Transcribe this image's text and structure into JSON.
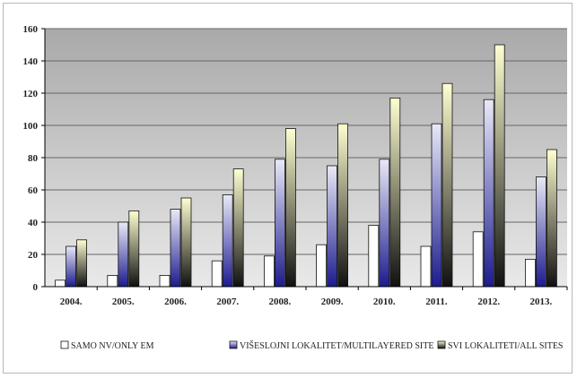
{
  "chart_data": {
    "type": "bar",
    "title": "",
    "xlabel": "",
    "ylabel": "",
    "ylim": [
      0,
      160
    ],
    "yticks": [
      0,
      20,
      40,
      60,
      80,
      100,
      120,
      140,
      160
    ],
    "grid": true,
    "legend_position": "bottom",
    "categories": [
      "2004.",
      "2005.",
      "2006.",
      "2007.",
      "2008.",
      "2009.",
      "2010.",
      "2011.",
      "2012.",
      "2013."
    ],
    "series": [
      {
        "name": "SAMO NV/ONLY EM",
        "values": [
          4,
          7,
          7,
          16,
          19,
          26,
          38,
          25,
          34,
          17
        ]
      },
      {
        "name": "VIŠESLOJNI LOKALITET/MULTILAYERED SITE",
        "values": [
          25,
          40,
          48,
          57,
          79,
          75,
          79,
          101,
          116,
          68
        ]
      },
      {
        "name": "SVI LOKALITETI/ALL SITES",
        "values": [
          29,
          47,
          55,
          73,
          98,
          101,
          117,
          126,
          150,
          85
        ]
      }
    ],
    "colors": {
      "plot_top": "#a9a9a9",
      "plot_bottom": "#e9e9e9",
      "gridline": "#666666",
      "series_1": "#ffffff",
      "series_2_top": "#e9e9f7",
      "series_2_bottom": "#1c1c8e",
      "series_3_top": "#ffffd2",
      "series_3_bottom": "#101010"
    }
  }
}
